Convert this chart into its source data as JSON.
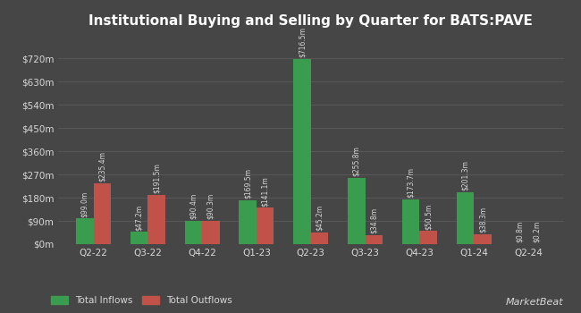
{
  "title": "Institutional Buying and Selling by Quarter for BATS:PAVE",
  "categories": [
    "Q2-22",
    "Q3-22",
    "Q4-22",
    "Q1-23",
    "Q2-23",
    "Q3-23",
    "Q4-23",
    "Q1-24",
    "Q2-24"
  ],
  "inflows": [
    99.0,
    47.2,
    90.4,
    169.5,
    716.5,
    255.8,
    173.7,
    201.3,
    0.8
  ],
  "outflows": [
    235.4,
    191.5,
    90.3,
    141.1,
    45.2,
    34.8,
    50.5,
    38.3,
    0.2
  ],
  "inflow_labels": [
    "$99.0m",
    "$47.2m",
    "$90.4m",
    "$169.5m",
    "$716.5m",
    "$255.8m",
    "$173.7m",
    "$201.3m",
    "$0.8m"
  ],
  "outflow_labels": [
    "$235.4m",
    "$191.5m",
    "$90.3m",
    "$141.1m",
    "$45.2m",
    "$34.8m",
    "$50.5m",
    "$38.3m",
    "$0.2m"
  ],
  "inflow_color": "#3a9c4e",
  "outflow_color": "#c0524a",
  "bg_color": "#464646",
  "grid_color": "#585858",
  "text_color": "#d8d8d8",
  "title_color": "#ffffff",
  "yticks": [
    0,
    90,
    180,
    270,
    360,
    450,
    540,
    630,
    720
  ],
  "ytick_labels": [
    "$0m",
    "$90m",
    "$180m",
    "$270m",
    "$360m",
    "$450m",
    "$540m",
    "$630m",
    "$720m"
  ],
  "ylim": [
    0,
    800
  ],
  "bar_width": 0.32,
  "label_fontsize": 5.5,
  "axis_fontsize": 7.5,
  "title_fontsize": 11,
  "legend_inflow": "Total Inflows",
  "legend_outflow": "Total Outflows",
  "marketbeat_text": "MarketBeat"
}
